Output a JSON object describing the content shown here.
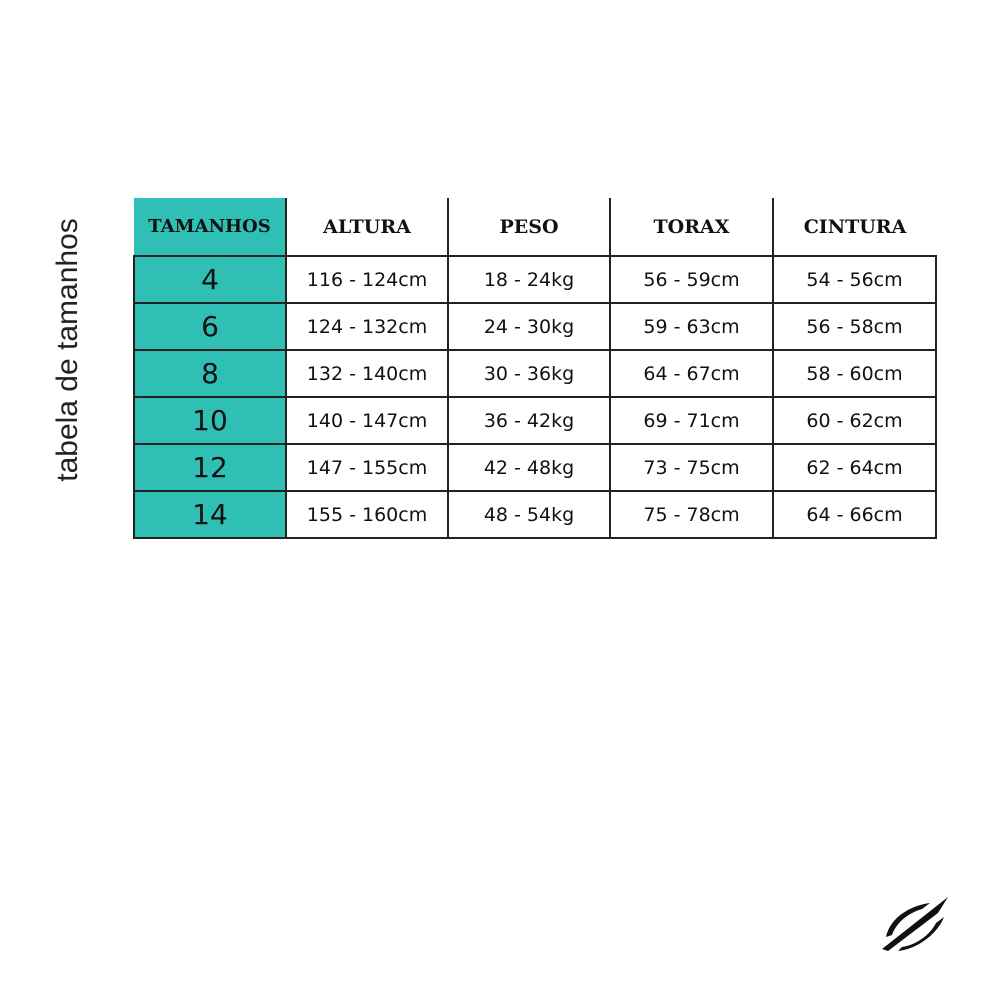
{
  "title": "tabela de tamanhos",
  "accent_color": "#2fbfb5",
  "table": {
    "headers": [
      "TAMANHOS",
      "ALTURA",
      "PESO",
      "TORAX",
      "CINTURA"
    ],
    "rows": [
      [
        "4",
        "116 - 124cm",
        "18 - 24kg",
        "56 - 59cm",
        "54 - 56cm"
      ],
      [
        "6",
        "124 - 132cm",
        "24 - 30kg",
        "59 - 63cm",
        "56 - 58cm"
      ],
      [
        "8",
        "132 - 140cm",
        "30 - 36kg",
        "64 - 67cm",
        "58 - 60cm"
      ],
      [
        "10",
        "140 - 147cm",
        "36 - 42kg",
        "69 - 71cm",
        "60 - 62cm"
      ],
      [
        "12",
        "147 - 155cm",
        "42 - 48kg",
        "73 - 75cm",
        "62 - 64cm"
      ],
      [
        "14",
        "155 - 160cm",
        "48 - 54kg",
        "75 - 78cm",
        "64 - 66cm"
      ]
    ]
  },
  "logo": "brand-feather-logo"
}
